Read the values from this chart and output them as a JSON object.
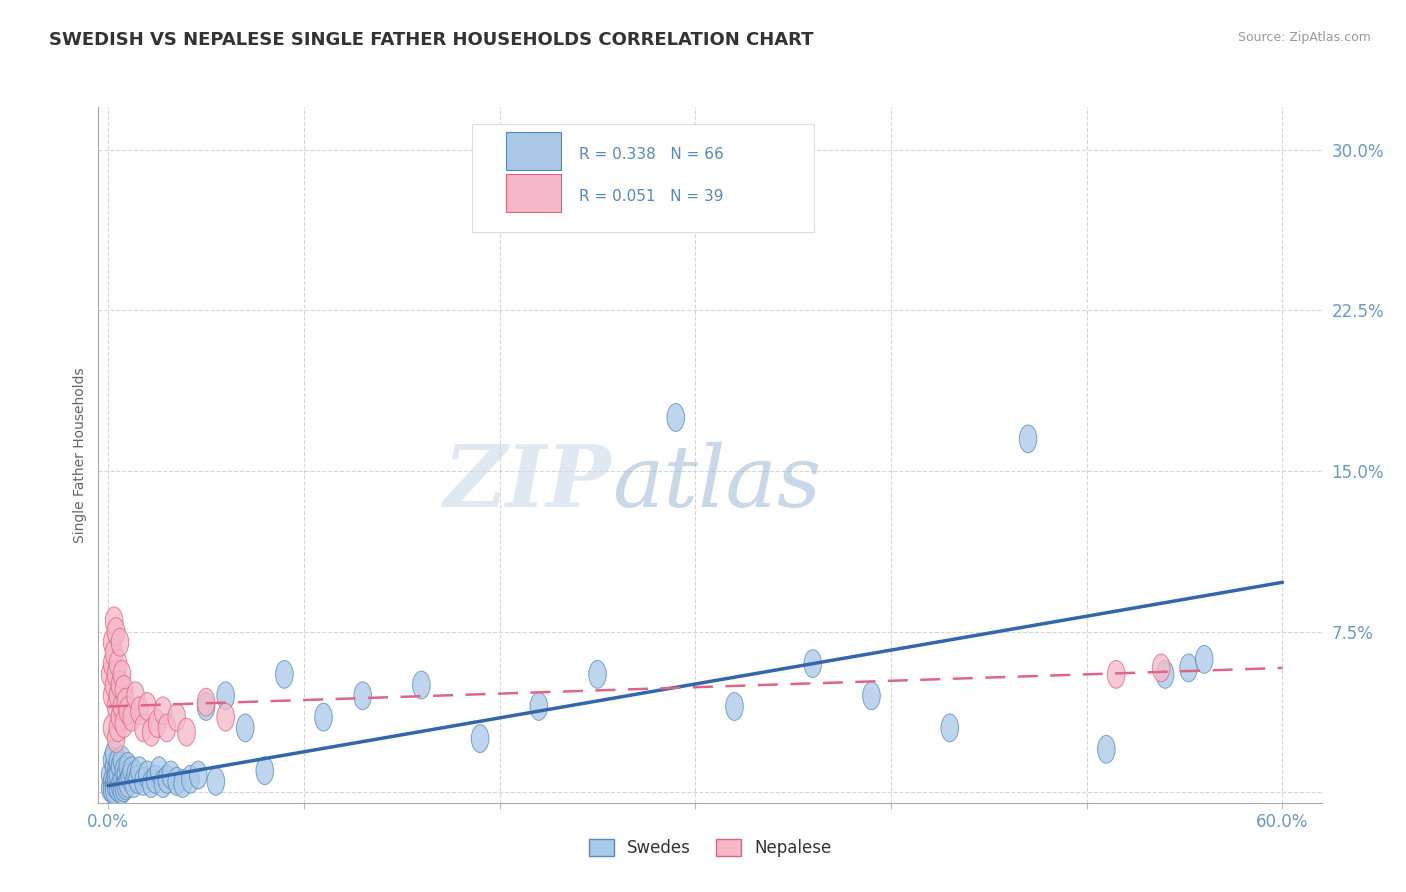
{
  "title": "SWEDISH VS NEPALESE SINGLE FATHER HOUSEHOLDS CORRELATION CHART",
  "source": "Source: ZipAtlas.com",
  "ylabel": "Single Father Households",
  "xlim": [
    -0.005,
    0.62
  ],
  "ylim": [
    -0.005,
    0.32
  ],
  "yticks": [
    0.0,
    0.075,
    0.15,
    0.225,
    0.3
  ],
  "ytick_labels": [
    "",
    "7.5%",
    "15.0%",
    "22.5%",
    "30.0%"
  ],
  "xticks": [
    0.0,
    0.1,
    0.2,
    0.3,
    0.4,
    0.5,
    0.6
  ],
  "xtick_labels": [
    "0.0%",
    "",
    "",
    "",
    "",
    "",
    "60.0%"
  ],
  "swedish_R": 0.338,
  "swedish_N": 66,
  "nepalese_R": 0.051,
  "nepalese_N": 39,
  "blue_fill": "#aac8e8",
  "blue_edge": "#5588bb",
  "pink_fill": "#f5b8c8",
  "pink_edge": "#e06080",
  "blue_line": "#3366aa",
  "pink_line": "#dd6688",
  "blue_label": "Swedes",
  "pink_label": "Nepalese",
  "bg_color": "#ffffff",
  "grid_color": "#cccccc",
  "title_color": "#333333",
  "ylabel_color": "#666666",
  "tick_color": "#6699cc",
  "watermark_color": "#ccddee",
  "swedish_x": [
    0.001,
    0.001,
    0.002,
    0.002,
    0.002,
    0.003,
    0.003,
    0.003,
    0.003,
    0.004,
    0.004,
    0.004,
    0.005,
    0.005,
    0.005,
    0.006,
    0.006,
    0.007,
    0.007,
    0.007,
    0.008,
    0.008,
    0.009,
    0.009,
    0.01,
    0.01,
    0.011,
    0.012,
    0.013,
    0.014,
    0.015,
    0.016,
    0.018,
    0.02,
    0.022,
    0.024,
    0.026,
    0.028,
    0.03,
    0.032,
    0.035,
    0.038,
    0.042,
    0.046,
    0.05,
    0.055,
    0.06,
    0.07,
    0.08,
    0.09,
    0.11,
    0.13,
    0.16,
    0.19,
    0.22,
    0.25,
    0.29,
    0.32,
    0.36,
    0.39,
    0.43,
    0.47,
    0.51,
    0.54,
    0.552,
    0.56
  ],
  "swedish_y": [
    0.008,
    0.002,
    0.015,
    0.005,
    0.001,
    0.012,
    0.004,
    0.018,
    0.001,
    0.01,
    0.003,
    0.007,
    0.014,
    0.002,
    0.008,
    0.012,
    0.003,
    0.015,
    0.005,
    0.001,
    0.01,
    0.002,
    0.008,
    0.003,
    0.012,
    0.004,
    0.007,
    0.01,
    0.004,
    0.008,
    0.006,
    0.01,
    0.005,
    0.008,
    0.004,
    0.006,
    0.01,
    0.004,
    0.006,
    0.008,
    0.005,
    0.004,
    0.006,
    0.008,
    0.04,
    0.005,
    0.045,
    0.03,
    0.01,
    0.055,
    0.035,
    0.045,
    0.05,
    0.025,
    0.04,
    0.055,
    0.175,
    0.04,
    0.06,
    0.045,
    0.03,
    0.165,
    0.02,
    0.055,
    0.058,
    0.062
  ],
  "nepalese_x": [
    0.001,
    0.002,
    0.002,
    0.002,
    0.002,
    0.003,
    0.003,
    0.003,
    0.004,
    0.004,
    0.004,
    0.004,
    0.005,
    0.005,
    0.005,
    0.006,
    0.006,
    0.006,
    0.007,
    0.007,
    0.008,
    0.008,
    0.009,
    0.01,
    0.012,
    0.014,
    0.016,
    0.018,
    0.02,
    0.022,
    0.025,
    0.028,
    0.03,
    0.035,
    0.04,
    0.05,
    0.06,
    0.515,
    0.538
  ],
  "nepalese_y": [
    0.055,
    0.07,
    0.06,
    0.045,
    0.03,
    0.08,
    0.065,
    0.05,
    0.075,
    0.055,
    0.04,
    0.025,
    0.06,
    0.045,
    0.03,
    0.07,
    0.05,
    0.035,
    0.055,
    0.04,
    0.048,
    0.032,
    0.042,
    0.038,
    0.035,
    0.045,
    0.038,
    0.03,
    0.04,
    0.028,
    0.032,
    0.038,
    0.03,
    0.035,
    0.028,
    0.042,
    0.035,
    0.055,
    0.058
  ],
  "sw_trend_x": [
    0.0,
    0.6
  ],
  "sw_trend_y": [
    0.003,
    0.098
  ],
  "np_trend_x": [
    0.0,
    0.6
  ],
  "np_trend_y": [
    0.04,
    0.058
  ]
}
